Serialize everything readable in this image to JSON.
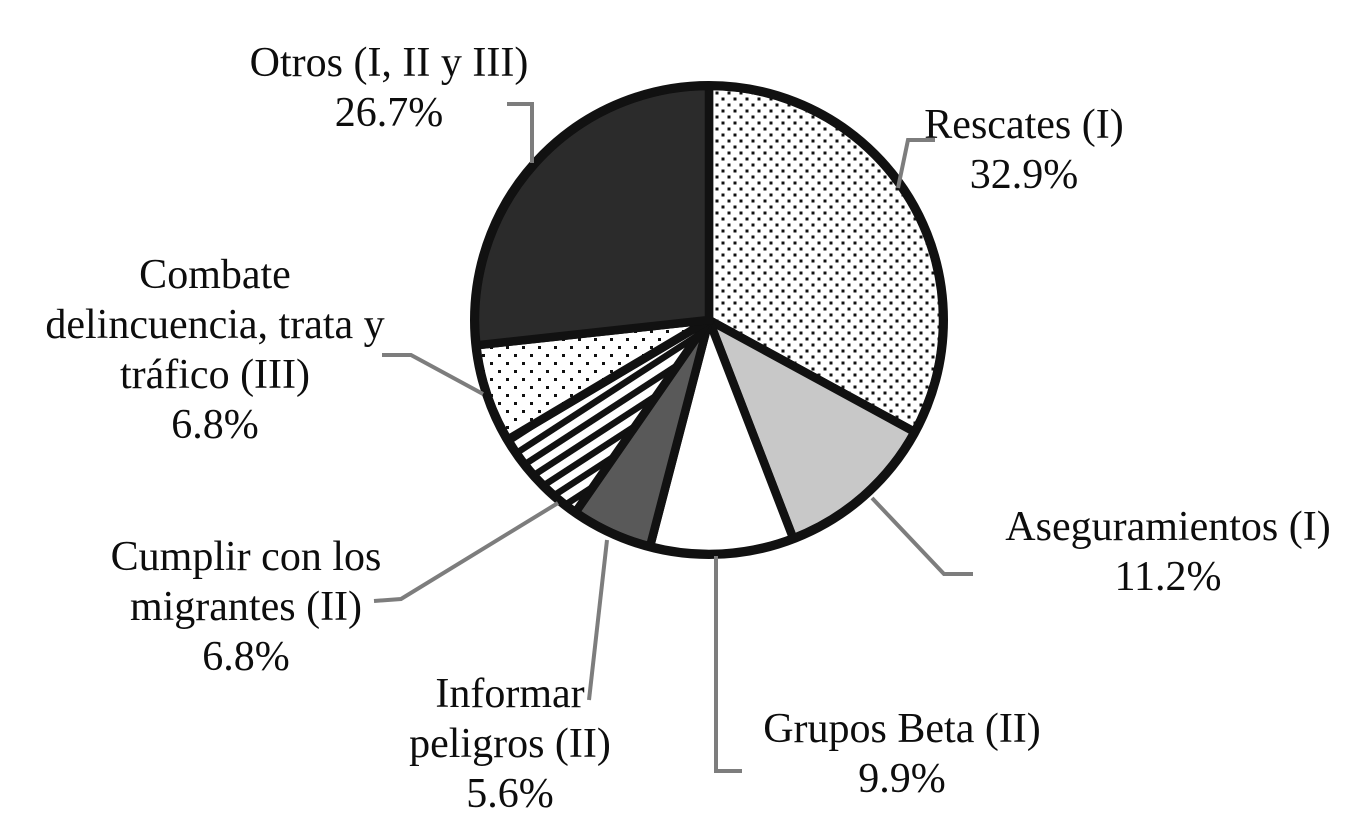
{
  "chart_data": {
    "type": "pie",
    "title": "",
    "start": "top",
    "direction": "clockwise",
    "slices": [
      {
        "label": "Rescates (I)",
        "value_pct": 32.9,
        "fill": "dots-dense",
        "color": null
      },
      {
        "label": "Aseguramientos (I)",
        "value_pct": 11.2,
        "fill": "solid",
        "color": "#c8c8c8"
      },
      {
        "label": "Grupos Beta (II)",
        "value_pct": 9.9,
        "fill": "solid",
        "color": "#ffffff"
      },
      {
        "label": "Informar peligros (II)",
        "value_pct": 5.6,
        "fill": "solid",
        "color": "#595959"
      },
      {
        "label": "Cumplir con los migrantes (II)",
        "value_pct": 6.8,
        "fill": "stripes",
        "color": null
      },
      {
        "label": "Combate delincuencia, trata y tráfico (III)",
        "value_pct": 6.8,
        "fill": "dots-sparse",
        "color": null
      },
      {
        "label": "Otros (I, II y III)",
        "value_pct": 26.7,
        "fill": "solid",
        "color": "#2b2b2b"
      }
    ],
    "pattern_colors": {
      "dot": "#111111",
      "stripe": "#111111",
      "background": "#ffffff"
    },
    "outline_color": "#111111",
    "leader_line_color": "#7d7d7d"
  },
  "callouts": {
    "otros": {
      "lines": [
        "Otros (I, II y III)",
        "26.7%"
      ]
    },
    "rescates": {
      "lines": [
        "Rescates (I)",
        "32.9%"
      ]
    },
    "aseguramientos": {
      "lines": [
        "Aseguramientos (I)",
        "11.2%"
      ]
    },
    "grupos": {
      "lines": [
        "Grupos Beta (II)",
        "9.9%"
      ]
    },
    "informar": {
      "lines": [
        "Informar",
        "peligros (II)",
        "5.6%"
      ]
    },
    "cumplir": {
      "lines": [
        "Cumplir con los",
        "migrantes (II)",
        "6.8%"
      ]
    },
    "combate": {
      "lines": [
        "Combate",
        "delincuencia, trata y",
        "tráfico (III)",
        "6.8%"
      ]
    }
  }
}
